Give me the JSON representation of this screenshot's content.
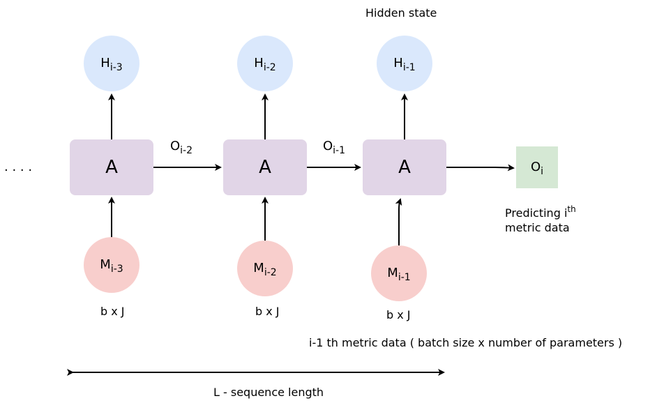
{
  "title": "Hidden state",
  "ellipsis": ". . . .",
  "hidden_states": [
    {
      "base": "H",
      "sub": "i-3"
    },
    {
      "base": "H",
      "sub": "i-2"
    },
    {
      "base": "H",
      "sub": "i-1"
    }
  ],
  "cells": [
    {
      "label": "A"
    },
    {
      "label": "A"
    },
    {
      "label": "A"
    }
  ],
  "inputs": [
    {
      "base": "M",
      "sub": "i-3",
      "dims": "b x J"
    },
    {
      "base": "M",
      "sub": "i-2",
      "dims": "b x J"
    },
    {
      "base": "M",
      "sub": "i-1",
      "dims": "b x J"
    }
  ],
  "edge_outputs": [
    {
      "base": "O",
      "sub": "i-2"
    },
    {
      "base": "O",
      "sub": "i-1"
    }
  ],
  "final_output": {
    "base": "O",
    "sub": "i"
  },
  "prediction": {
    "line1_prefix": "Predicting i",
    "line1_sup": "th",
    "line2": "metric data"
  },
  "input_description": "i-1 th metric data ( batch size x number of parameters )",
  "sequence_label": "L - sequence length",
  "colors": {
    "hidden": "#dae8fc",
    "input": "#f8cecc",
    "cell": "#e1d5e7",
    "output": "#d5e8d4",
    "arrow": "#000000"
  }
}
